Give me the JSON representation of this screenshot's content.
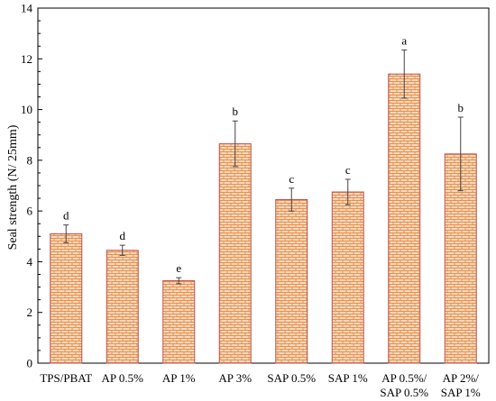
{
  "chart_data": {
    "type": "bar",
    "title": "",
    "xlabel": "",
    "ylabel": "Seal strength (N/ 25mm)",
    "ylim": [
      0,
      14
    ],
    "yticks": [
      0,
      2,
      4,
      6,
      8,
      10,
      12,
      14
    ],
    "grid": false,
    "categories": [
      [
        "TPS/PBAT"
      ],
      [
        "AP 0.5%"
      ],
      [
        "AP 1%"
      ],
      [
        "AP 3%"
      ],
      [
        "SAP 0.5%"
      ],
      [
        "SAP 1%"
      ],
      [
        "AP 0.5%/",
        "SAP 0.5%"
      ],
      [
        "AP 2%/",
        "SAP 1%"
      ]
    ],
    "values": [
      5.1,
      4.45,
      3.25,
      8.65,
      6.45,
      6.75,
      11.4,
      8.25
    ],
    "errors": [
      0.35,
      0.2,
      0.12,
      0.9,
      0.45,
      0.5,
      0.95,
      1.45
    ],
    "letters": [
      "d",
      "d",
      "e",
      "b",
      "c",
      "c",
      "a",
      "b"
    ],
    "bar_fill": "#f6d9bf",
    "bar_pattern_color": "#e8914d",
    "bar_stroke": "#c0504d"
  }
}
